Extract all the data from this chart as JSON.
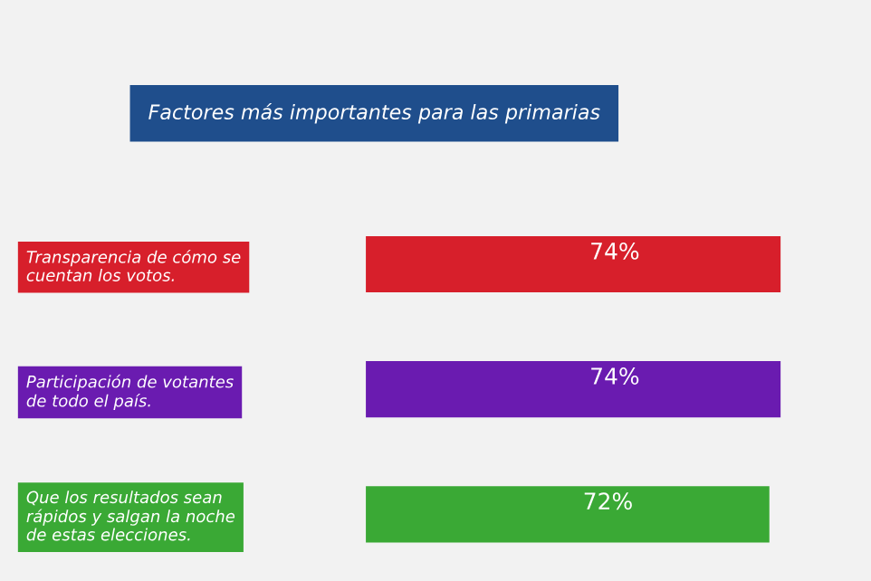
{
  "chart_data": {
    "type": "bar",
    "orientation": "horizontal",
    "title": "Factores más importantes para las primarias",
    "categories": [
      "Transparencia de cómo se\ncuentan los votos.",
      "Participación de votantes\nde todo el país.",
      "Que los resultados sean\nrápidos y salgan la noche\nde estas elecciones."
    ],
    "values": [
      74,
      74,
      72
    ],
    "colors": [
      "#d71f2b",
      "#6a1bb0",
      "#3aa935"
    ],
    "value_labels": [
      "74%",
      "74%",
      "72%"
    ],
    "tick_labels": "y",
    "grid": false,
    "legend": false
  }
}
